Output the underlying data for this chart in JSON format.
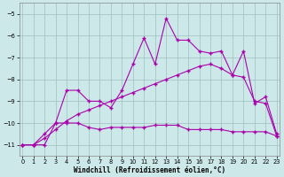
{
  "x_values": [
    0,
    1,
    2,
    3,
    4,
    5,
    6,
    7,
    8,
    9,
    10,
    11,
    12,
    13,
    14,
    15,
    16,
    17,
    18,
    19,
    20,
    21,
    22,
    23
  ],
  "line1": [
    -11.0,
    -11.0,
    -10.5,
    -10.0,
    -8.5,
    -8.5,
    -9.0,
    -9.0,
    -9.3,
    -8.5,
    -7.3,
    -6.1,
    -7.3,
    -5.2,
    -6.2,
    -6.2,
    -6.7,
    -6.8,
    -6.7,
    -7.8,
    -6.7,
    -9.1,
    -8.8,
    -10.5
  ],
  "line2": [
    -11.0,
    -11.0,
    -11.0,
    -10.0,
    -10.0,
    -10.0,
    -10.2,
    -10.3,
    -10.2,
    -10.2,
    -10.2,
    -10.2,
    -10.1,
    -10.1,
    -10.1,
    -10.3,
    -10.3,
    -10.3,
    -10.3,
    -10.4,
    -10.4,
    -10.4,
    -10.4,
    -10.6
  ],
  "line3": [
    -11.0,
    -11.0,
    -10.7,
    -10.3,
    -9.9,
    -9.6,
    -9.4,
    -9.2,
    -9.0,
    -8.8,
    -8.6,
    -8.4,
    -8.2,
    -8.0,
    -7.8,
    -7.6,
    -7.4,
    -7.3,
    -7.5,
    -7.8,
    -7.9,
    -9.0,
    -9.1,
    -10.6
  ],
  "line_color": "#aa00aa",
  "bg_color": "#cce8e8",
  "grid_color": "#9fbfbf",
  "xlabel": "Windchill (Refroidissement éolien,°C)",
  "ylim": [
    -11.5,
    -4.5
  ],
  "xlim": [
    -0.3,
    23.3
  ],
  "yticks": [
    -11,
    -10,
    -9,
    -8,
    -7,
    -6,
    -5
  ],
  "xtick_labels": [
    "0",
    "1",
    "2",
    "3",
    "4",
    "5",
    "6",
    "7",
    "8",
    "9",
    "10",
    "11",
    "12",
    "13",
    "14",
    "15",
    "16",
    "17",
    "18",
    "19",
    "20",
    "21",
    "22",
    "23"
  ]
}
